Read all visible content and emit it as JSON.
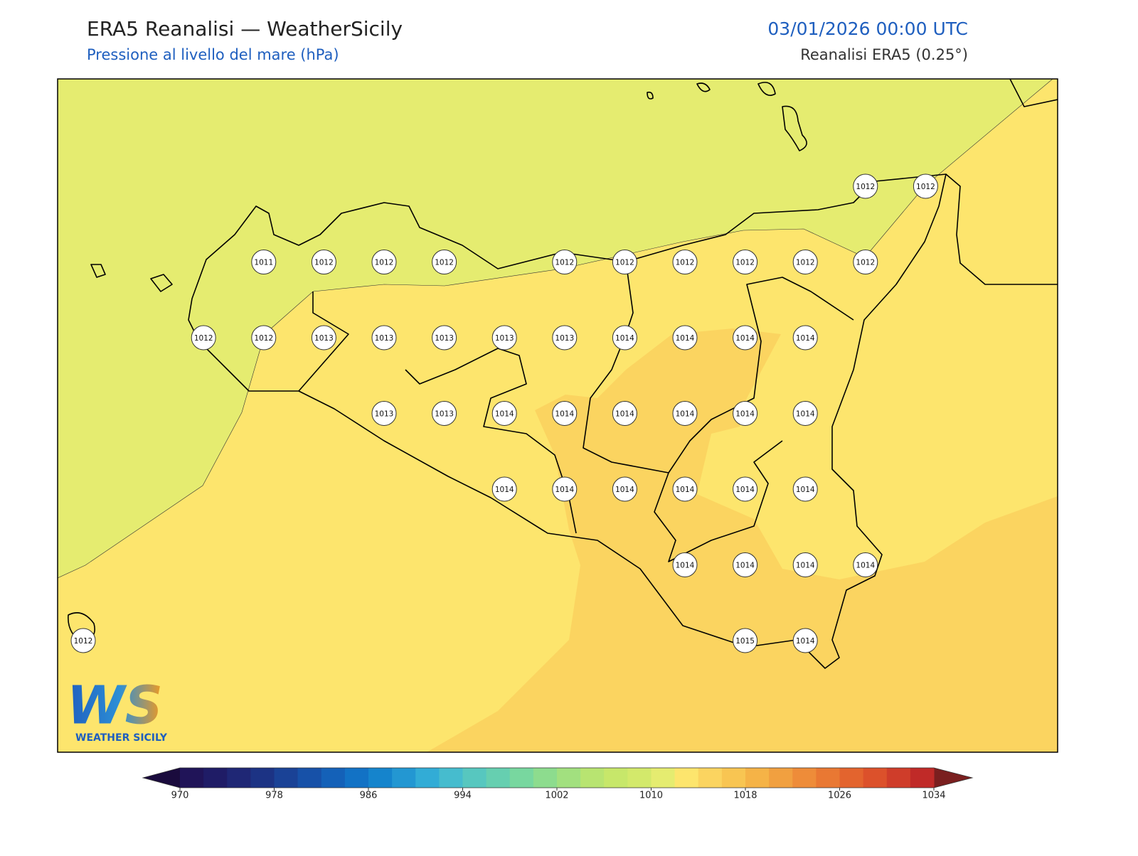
{
  "header": {
    "title": "ERA5 Reanalisi — WeatherSicily",
    "subtitle": "Pressione al livello del mare (hPa)",
    "date": "03/01/2026 00:00 UTC",
    "source": "Reanalisi ERA5 (0.25°)"
  },
  "map": {
    "grid": [
      [
        null,
        null,
        null,
        null,
        null,
        null,
        null,
        null,
        null,
        null,
        null,
        null,
        null,
        1012,
        1012
      ],
      [
        null,
        null,
        null,
        1011,
        1012,
        1012,
        1012,
        null,
        1012,
        1012,
        1012,
        1012,
        1012,
        1012,
        null
      ],
      [
        null,
        null,
        1012,
        1012,
        1013,
        1013,
        1013,
        1013,
        1013,
        1014,
        1014,
        1014,
        1014,
        null,
        null
      ],
      [
        null,
        null,
        null,
        null,
        null,
        1013,
        1013,
        1014,
        1014,
        1014,
        1014,
        1014,
        1014,
        null,
        null
      ],
      [
        null,
        null,
        null,
        null,
        null,
        null,
        null,
        1014,
        1014,
        1014,
        1014,
        1014,
        1014,
        null,
        null
      ],
      [
        null,
        null,
        null,
        null,
        null,
        null,
        null,
        null,
        null,
        null,
        1014,
        1014,
        1014,
        1014,
        null
      ],
      [
        1012,
        null,
        null,
        null,
        null,
        null,
        null,
        null,
        null,
        null,
        null,
        1015,
        1014,
        null,
        null
      ]
    ]
  },
  "colorbar": {
    "min": 970,
    "max": 1034,
    "ticks": [
      970,
      978,
      986,
      994,
      1002,
      1010,
      1018,
      1026,
      1034
    ],
    "colors": [
      "#201458",
      "#1f1c66",
      "#1f2775",
      "#1c3384",
      "#1a4296",
      "#1751a8",
      "#1461b8",
      "#1272c5",
      "#1584cc",
      "#2397d2",
      "#32acd6",
      "#46bcce",
      "#57c7bf",
      "#66cfb0",
      "#78d79f",
      "#8ddc8e",
      "#a2e07f",
      "#b8e471",
      "#c7e76a",
      "#d3e96b",
      "#e5ec70",
      "#fde56d",
      "#fbd460",
      "#f8c552",
      "#f5b347",
      "#f1a040",
      "#ee8c39",
      "#e97833",
      "#e3642e",
      "#dc512b",
      "#cf3d2a",
      "#c02a28"
    ],
    "under": "#1a0b3d",
    "over": "#7a1f1f"
  },
  "logo": {
    "mark": "WS",
    "name": "WEATHER SICILY"
  }
}
